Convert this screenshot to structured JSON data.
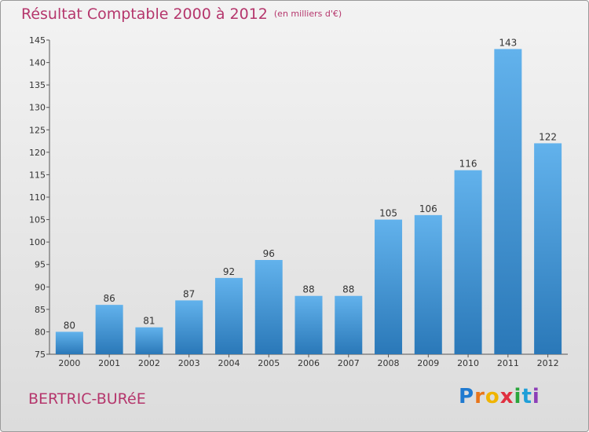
{
  "header": {
    "title": "Résultat Comptable 2000 à 2012",
    "unit": "(en milliers d'€)"
  },
  "footer": {
    "commune": "BERTRIC-BURéE",
    "logo_letters": [
      "P",
      "r",
      "o",
      "x",
      "i",
      "t",
      "i"
    ],
    "logo_colors": [
      "#1f7ad0",
      "#e8751a",
      "#f0b400",
      "#e03040",
      "#2aa63c",
      "#1f9fd8",
      "#8d3fb8"
    ]
  },
  "colors": {
    "accent": "#b5366c",
    "bar_light": "#62b2ec",
    "bar_dark": "#2a78b8"
  },
  "chart_data": {
    "type": "bar",
    "title": "Résultat Comptable 2000 à 2012",
    "xlabel": "",
    "ylabel": "",
    "categories": [
      "2000",
      "2001",
      "2002",
      "2003",
      "2004",
      "2005",
      "2006",
      "2007",
      "2008",
      "2009",
      "2010",
      "2011",
      "2012"
    ],
    "values": [
      80,
      86,
      81,
      87,
      92,
      96,
      88,
      88,
      105,
      106,
      116,
      143,
      122
    ],
    "ylim": [
      75,
      145
    ],
    "yticks": [
      75,
      80,
      85,
      90,
      95,
      100,
      105,
      110,
      115,
      120,
      125,
      130,
      135,
      140,
      145
    ],
    "grid": false,
    "legend": "none"
  }
}
